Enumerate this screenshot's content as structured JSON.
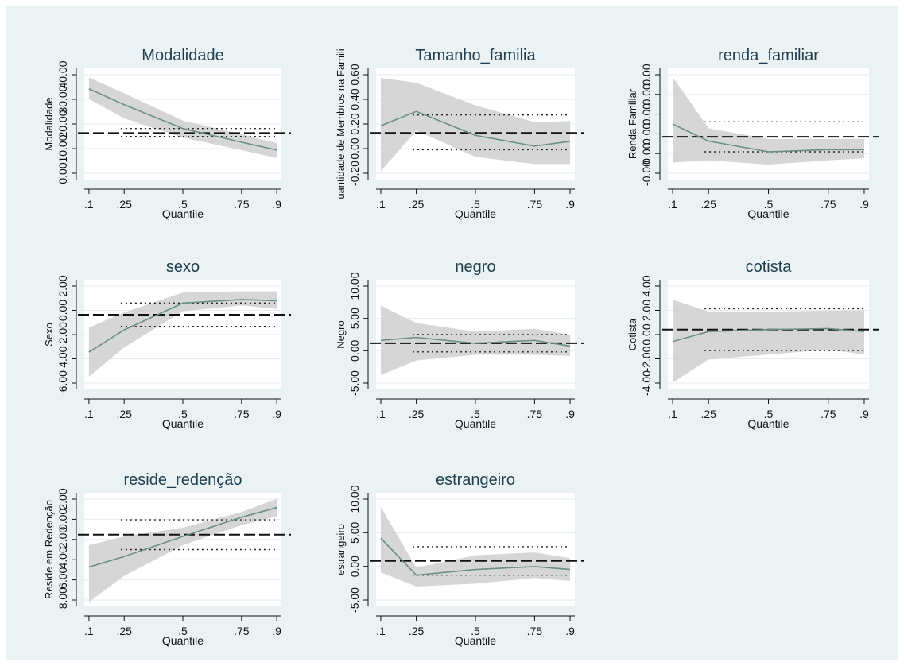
{
  "figure": {
    "colors": {
      "background": "#eaf2f3",
      "plot_area": "#ffffff",
      "grid": "#e3eef0",
      "ci_band": "#cfcfcf",
      "estimate_line": "#6b8f7f",
      "ols_line": "#111111",
      "ols_ci": "#222222"
    }
  },
  "chart_data": [
    {
      "type": "line",
      "title": "Modalidade",
      "ylabel": "Modalidade",
      "xlabel": "Quantile",
      "xticks": [
        ".1",
        ".25",
        ".5",
        ".75",
        ".9"
      ],
      "yticks": [
        "0.00",
        "10.00",
        "20.00",
        "30.00",
        "40.00"
      ],
      "ylim": [
        -3,
        46
      ],
      "x": [
        0.1,
        0.25,
        0.5,
        0.75,
        0.9
      ],
      "estimate": [
        37,
        30,
        19.5,
        13.5,
        10
      ],
      "ci_lower": [
        32.5,
        24,
        15.5,
        10,
        6.5
      ],
      "ci_upper": [
        42,
        35,
        23,
        17,
        13
      ],
      "ols": 17.5,
      "ols_ci": [
        16,
        19.5
      ]
    },
    {
      "type": "line",
      "title": "Tamanho_familia",
      "ylabel": "uantidade de Membros na Famili",
      "xlabel": "Quantile",
      "xticks": [
        ".1",
        ".25",
        ".5",
        ".75",
        ".9"
      ],
      "yticks": [
        "-0.20",
        "0.00",
        "0.20",
        "0.40",
        "0.60"
      ],
      "ylim": [
        -0.25,
        0.68
      ],
      "x": [
        0.1,
        0.25,
        0.5,
        0.75,
        0.9
      ],
      "estimate": [
        0.2,
        0.32,
        0.12,
        0.03,
        0.07
      ],
      "ci_lower": [
        -0.18,
        0.16,
        -0.06,
        -0.12,
        -0.12
      ],
      "ci_upper": [
        0.6,
        0.56,
        0.37,
        0.23,
        0.24
      ],
      "ols": 0.14,
      "ols_ci": [
        0.0,
        0.29
      ]
    },
    {
      "type": "line",
      "title": "renda_familiar",
      "ylabel": "Renda Familiar",
      "xlabel": "Quantile",
      "xticks": [
        ".1",
        ".25",
        ".5",
        ".75",
        ".9"
      ],
      "yticks": [
        "-0.00",
        "0.00",
        "0.00",
        "0.00",
        "0.00",
        "0.00"
      ],
      "ylim": [
        -5,
        21
      ],
      "x": [
        0.1,
        0.25,
        0.5,
        0.75,
        0.9
      ],
      "estimate": [
        8,
        4,
        1.5,
        2,
        2
      ],
      "ci_lower": [
        -1,
        -0.5,
        -1.5,
        -0.5,
        0
      ],
      "ci_upper": [
        19,
        7,
        4.5,
        4.5,
        4.5
      ],
      "ols": 5,
      "ols_ci": [
        1.5,
        8.5
      ]
    },
    {
      "type": "line",
      "title": "sexo",
      "ylabel": "Sexo",
      "xlabel": "Quantile",
      "xticks": [
        ".1",
        ".25",
        ".5",
        ".75",
        ".9"
      ],
      "yticks": [
        "-6.00",
        "-4.00",
        "-2.00",
        "0.00",
        "2.00"
      ],
      "ylim": [
        -6.6,
        2.8
      ],
      "x": [
        0.1,
        0.25,
        0.5,
        0.75,
        0.9
      ],
      "estimate": [
        -3.4,
        -1.5,
        0.8,
        1.1,
        1
      ],
      "ci_lower": [
        -5.5,
        -3,
        0.1,
        0.6,
        0.3
      ],
      "ci_upper": [
        -1.3,
        0,
        1.7,
        1.8,
        1.8
      ],
      "ols": -0.2,
      "ols_ci": [
        -1.2,
        0.8
      ]
    },
    {
      "type": "line",
      "title": "negro",
      "ylabel": "Negro",
      "xlabel": "Quantile",
      "xticks": [
        ".1",
        ".25",
        ".5",
        ".75",
        ".9"
      ],
      "yticks": [
        "-5.00",
        "0.00",
        "5.00",
        "10.00"
      ],
      "ylim": [
        -6,
        13
      ],
      "x": [
        0.1,
        0.25,
        0.5,
        0.75,
        0.9
      ],
      "estimate": [
        2.5,
        3,
        2,
        2.5,
        1.5
      ],
      "ci_lower": [
        -3.5,
        -1,
        0,
        0,
        -0.2
      ],
      "ci_upper": [
        8.5,
        5.5,
        4,
        4.5,
        3.5
      ],
      "ols": 2,
      "ols_ci": [
        0.5,
        3.5
      ]
    },
    {
      "type": "line",
      "title": "cotista",
      "ylabel": "Cotista",
      "xlabel": "Quantile",
      "xticks": [
        ".1",
        ".25",
        ".5",
        ".75",
        ".9"
      ],
      "yticks": [
        "-4.00",
        "-2.00",
        "0.00",
        "2.00",
        "4.00"
      ],
      "ylim": [
        -4.5,
        6.5
      ],
      "x": [
        0.1,
        0.25,
        0.5,
        0.75,
        0.9
      ],
      "estimate": [
        0.3,
        1.3,
        1.5,
        1.6,
        1.3
      ],
      "ci_lower": [
        -3.8,
        -1.5,
        -1,
        -0.5,
        -1
      ],
      "ci_upper": [
        4.5,
        3.3,
        3.3,
        3.4,
        3.4
      ],
      "ols": 1.5,
      "ols_ci": [
        -0.6,
        3.6
      ]
    },
    {
      "type": "line",
      "title": "reside_redenção",
      "ylabel": "Reside em Redenção",
      "xlabel": "Quantile",
      "xticks": [
        ".1",
        ".25",
        ".5",
        ".75",
        ".9"
      ],
      "yticks": [
        "-8.00",
        "-6.00",
        "-4.00",
        "-2.00",
        "0.00",
        "2.00"
      ],
      "ylim": [
        -9,
        4
      ],
      "x": [
        0.1,
        0.25,
        0.5,
        0.75,
        0.9
      ],
      "estimate": [
        -4.5,
        -3.3,
        -1,
        1.2,
        2.3
      ],
      "ci_lower": [
        -8.5,
        -5.5,
        -2,
        0.3,
        1.3
      ],
      "ci_upper": [
        -2,
        -1,
        0,
        1.8,
        3.3
      ],
      "ols": -0.8,
      "ols_ci": [
        -2.5,
        0.9
      ]
    },
    {
      "type": "line",
      "title": "estrangeiro",
      "ylabel": "estrangeiro",
      "xlabel": "Quantile",
      "xticks": [
        ".1",
        ".25",
        ".5",
        ".75",
        ".9"
      ],
      "yticks": [
        "-5.00",
        "0.00",
        "5.00",
        "10.00"
      ],
      "ylim": [
        -6,
        14
      ],
      "x": [
        0.1,
        0.25,
        0.5,
        0.75,
        0.9
      ],
      "estimate": [
        6,
        -0.5,
        0.5,
        1,
        0.5
      ],
      "ci_lower": [
        0,
        -2.5,
        -2,
        -1,
        -1.5
      ],
      "ci_upper": [
        11.5,
        0.8,
        3,
        3.5,
        2.5
      ],
      "ols": 2,
      "ols_ci": [
        -0.5,
        4.5
      ]
    }
  ]
}
